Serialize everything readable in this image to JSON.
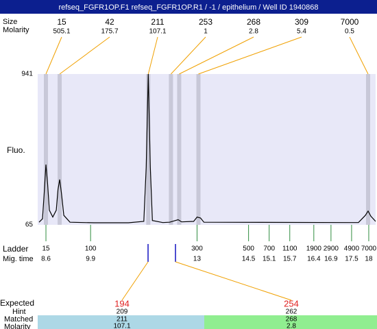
{
  "header": {
    "title": "refseq_FGFR1OP.F1  refseq_FGFR1OP.R1  / -1  / epithelium  / Well ID 1940868"
  },
  "peak_table": {
    "size_label": "Size",
    "molarity_label": "Molarity",
    "peaks": [
      {
        "size": 15,
        "molarity": 505.1,
        "mig_time": 8.6
      },
      {
        "size": 42,
        "molarity": 175.7,
        "mig_time": 9.0
      },
      {
        "size": 211,
        "molarity": 107.1,
        "mig_time": 11.58
      },
      {
        "size": 253,
        "molarity": 1,
        "mig_time": 12.24
      },
      {
        "size": 268,
        "molarity": 2.8,
        "mig_time": 12.48
      },
      {
        "size": 309,
        "molarity": 5.4,
        "mig_time": 13.04
      },
      {
        "size": 7000,
        "molarity": 0.5,
        "mig_time": 17.98
      }
    ]
  },
  "chart_data": {
    "type": "line",
    "y_label": "Fluo.",
    "color": "#000000",
    "x": [
      8.4,
      8.5,
      8.55,
      8.6,
      8.65,
      8.7,
      8.8,
      8.9,
      8.95,
      9.0,
      9.05,
      9.12,
      9.3,
      10,
      11,
      11.45,
      11.52,
      11.58,
      11.64,
      11.7,
      12.0,
      12.2,
      12.45,
      12.55,
      12.9,
      13.0,
      13.1,
      13.2,
      17.7,
      17.9,
      17.98,
      18.06,
      18.2
    ],
    "values": [
      80,
      100,
      250,
      415,
      300,
      150,
      110,
      150,
      270,
      328,
      250,
      120,
      80,
      77,
      77,
      85,
      400,
      941,
      400,
      90,
      78,
      80,
      95,
      82,
      85,
      110,
      105,
      80,
      78,
      120,
      145,
      115,
      85
    ],
    "xlim": [
      8.36,
      18.2
    ],
    "ylim": [
      65,
      941
    ],
    "yticks": [
      65,
      941
    ]
  },
  "ladder": {
    "label": "Ladder",
    "time_label": "Mig. time",
    "sizes": [
      15,
      100,
      300,
      500,
      700,
      1100,
      1900,
      2900,
      4900,
      7000
    ],
    "times": [
      8.6,
      9.9,
      13,
      14.5,
      15.1,
      15.7,
      16.4,
      16.9,
      17.5,
      18
    ]
  },
  "expected": {
    "label": "Expected",
    "hint_label": "Hint",
    "matched_label": "Matched",
    "molarity_label": "Molarity",
    "items": [
      {
        "expected": 194,
        "hint": 209,
        "matched": 211,
        "molarity": 107.1
      },
      {
        "expected": 254,
        "hint": 262,
        "matched": 268,
        "molarity": 2.8
      }
    ]
  }
}
